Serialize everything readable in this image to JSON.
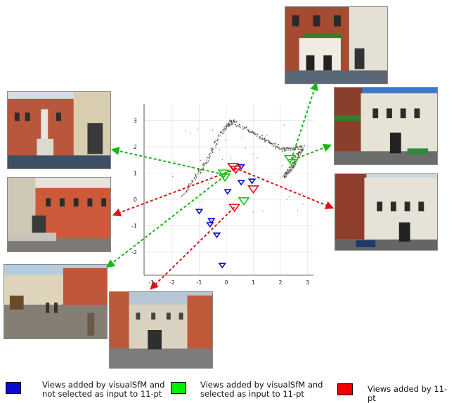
{
  "chart_data": {
    "type": "scatter",
    "xticks": [
      "-1",
      "-2",
      "-1",
      "0",
      "1",
      "2",
      "3"
    ],
    "yticks": [
      "3",
      "2",
      "1",
      "0",
      "-1",
      "-2"
    ],
    "xlim": [
      -3,
      3.2
    ],
    "ylim": [
      -3,
      3.5
    ],
    "reconstruction_path": [
      [
        -1.6,
        0.2
      ],
      [
        -0.8,
        1.4
      ],
      [
        -0.1,
        2.7
      ],
      [
        0.2,
        3.0
      ],
      [
        1.2,
        2.4
      ],
      [
        2.1,
        1.9
      ],
      [
        2.8,
        2.0
      ],
      [
        2.5,
        1.4
      ],
      [
        2.3,
        1.1
      ],
      [
        2.1,
        0.9
      ]
    ],
    "series": [
      {
        "label_ref": "blue",
        "color": "#0a0ad0",
        "points": [
          [
            -1,
            -0.45
          ],
          [
            -0.55,
            -0.8
          ],
          [
            -0.6,
            -0.95
          ],
          [
            -0.35,
            -1.35
          ],
          [
            0.05,
            0.3
          ],
          [
            0.55,
            0.65
          ],
          [
            0.95,
            0.7
          ],
          [
            0.55,
            1.25
          ],
          [
            -0.15,
            -2.5
          ]
        ]
      },
      {
        "label_ref": "green",
        "color": "#14c814",
        "points": [
          [
            -0.1,
            1.0
          ],
          [
            -0.05,
            0.85
          ],
          [
            0.65,
            -0.05
          ],
          [
            2.35,
            1.55
          ],
          [
            2.45,
            1.4
          ]
        ]
      },
      {
        "label_ref": "red",
        "color": "#e01010",
        "points": [
          [
            0.25,
            1.25
          ],
          [
            0.35,
            1.15
          ],
          [
            1.0,
            0.4
          ],
          [
            0.3,
            -0.3
          ]
        ]
      }
    ]
  },
  "legend": [
    {
      "color": "#0a0ad0",
      "text": "Views added by visualSfM and\nnot selected as input to 11-pt"
    },
    {
      "color": "#00ee00",
      "text": "Views added by visualSfM and\nselected as input to 11-pt"
    },
    {
      "color": "#ee0000",
      "text": "Views added by 11-pt"
    }
  ]
}
